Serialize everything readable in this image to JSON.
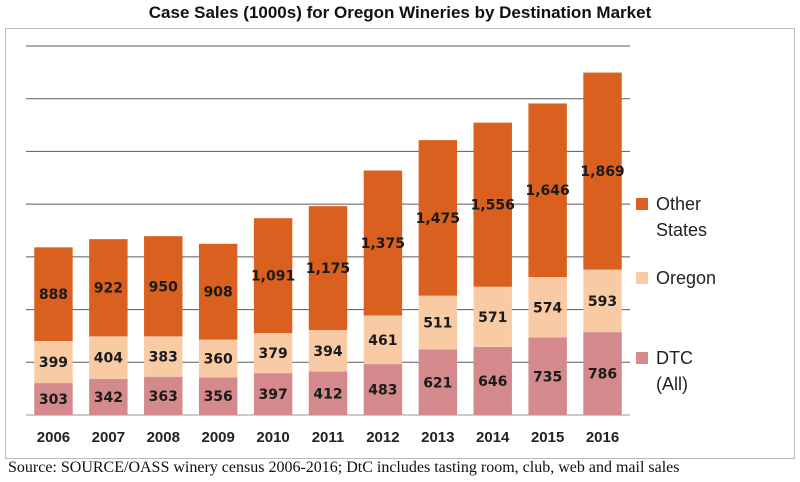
{
  "title": "Case Sales (1000s) for Oregon Wineries by Destination Market",
  "source_note": "Source: SOURCE/OASS winery census 2006-2016; DtC includes tasting room, club, web and mail sales",
  "colors": {
    "other_states": "#d9601f",
    "oregon": "#f8cba5",
    "dtc": "#d48a8c",
    "gridline": "#5a5a5a",
    "frame": "#b9b9b9"
  },
  "legend": [
    {
      "series": "Other States",
      "lines": [
        "Other",
        "States"
      ],
      "color": "#d9601f"
    },
    {
      "series": "Oregon",
      "lines": [
        "Oregon"
      ],
      "color": "#f8cba5"
    },
    {
      "series": "DTC (All)",
      "lines": [
        "DTC",
        "(All)"
      ],
      "color": "#d48a8c"
    }
  ],
  "chart_data": {
    "type": "bar",
    "stacked": true,
    "title": "Case Sales (1000s) for Oregon Wineries by Destination Market",
    "categories": [
      "2006",
      "2007",
      "2008",
      "2009",
      "2010",
      "2011",
      "2012",
      "2013",
      "2014",
      "2015",
      "2016"
    ],
    "series": [
      {
        "name": "DTC (All)",
        "values": [
          303,
          342,
          363,
          356,
          397,
          412,
          483,
          621,
          646,
          735,
          786
        ]
      },
      {
        "name": "Oregon",
        "values": [
          399,
          404,
          383,
          360,
          379,
          394,
          461,
          511,
          571,
          574,
          593
        ]
      },
      {
        "name": "Other States",
        "values": [
          888,
          922,
          950,
          908,
          1091,
          1175,
          1375,
          1475,
          1556,
          1646,
          1869
        ]
      }
    ],
    "data_labels": [
      [
        "303",
        "342",
        "363",
        "356",
        "397",
        "412",
        "483",
        "621",
        "646",
        "735",
        "786"
      ],
      [
        "399",
        "404",
        "383",
        "360",
        "379",
        "394",
        "461",
        "511",
        "571",
        "574",
        "593"
      ],
      [
        "888",
        "922",
        "950",
        "908",
        "1,091",
        "1,175",
        "1,375",
        "1,475",
        "1,556",
        "1,646",
        "1,869"
      ]
    ],
    "ylim": [
      0,
      3500
    ],
    "y_grid_step": 500,
    "grid": true,
    "legend_position": "right"
  }
}
